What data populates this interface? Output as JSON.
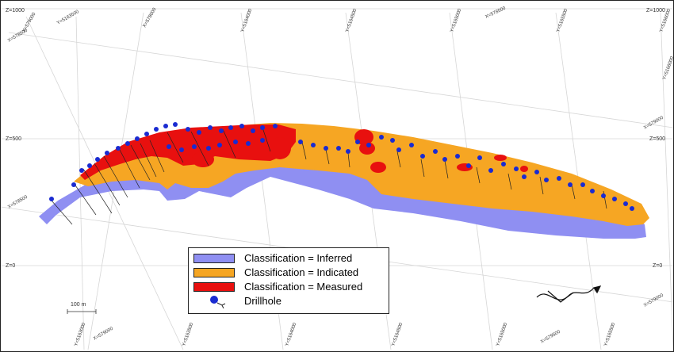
{
  "colors": {
    "inferred": "#8f8ff2",
    "indicated": "#f6a623",
    "measured": "#e8100f",
    "drillhole": "#1a2bd1",
    "grid": "#d6d6d6"
  },
  "z_labels": {
    "top_left": "Z=1000",
    "top_right": "Z=1000",
    "mid_left": "Z=500",
    "mid_right": "Z=500",
    "low_left": "Z=0",
    "low_right": "Z=0"
  },
  "top_coords": [
    "X=579000",
    "Y=5163500",
    "X=578000",
    "Y=5164000",
    "Y=5164500",
    "Y=5165000",
    "X=578500",
    "Y=5165500",
    "Y=5166000"
  ],
  "side_coords": {
    "left_upper": "X=578500",
    "left_lower": "X=578500",
    "right_upper": "Y=5166000",
    "right_mid": "X=579000",
    "right_lower": "X=579000"
  },
  "bottom_coords": [
    "Y=5163000",
    "X=579000",
    "Y=5163500",
    "Y=5164000",
    "Y=5164500",
    "Y=5165000",
    "X=579500",
    "Y=5165500"
  ],
  "legend": {
    "inferred": "Classification = Inferred",
    "indicated": "Classification = Indicated",
    "measured": "Classification = Measured",
    "drillhole": "Drillhole"
  },
  "scale_bar": "100 m"
}
